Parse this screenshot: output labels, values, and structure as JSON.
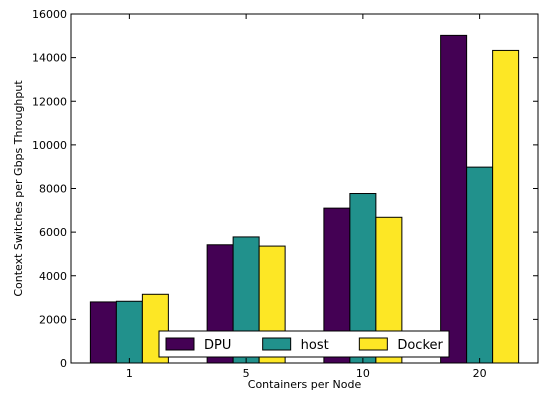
{
  "chart_data": {
    "type": "bar",
    "categories": [
      "1",
      "5",
      "10",
      "20"
    ],
    "series": [
      {
        "name": "DPU",
        "values": [
          2800,
          5420,
          7100,
          15020
        ],
        "color": "#440154"
      },
      {
        "name": "host",
        "values": [
          2830,
          5780,
          7770,
          8980
        ],
        "color": "#21918c"
      },
      {
        "name": "Docker",
        "values": [
          3150,
          5360,
          6680,
          14330
        ],
        "color": "#fde725"
      }
    ],
    "xlabel": "Containers per Node",
    "ylabel": "Context Switches per Gbps Throughput",
    "ylim": [
      0,
      16000
    ],
    "yticks": [
      0,
      2000,
      4000,
      6000,
      8000,
      10000,
      12000,
      14000,
      16000
    ],
    "legend_position": "bottom-center",
    "grid": false
  }
}
